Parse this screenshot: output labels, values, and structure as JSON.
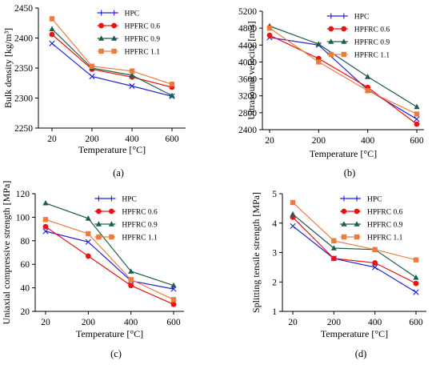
{
  "chart_data": [
    {
      "type": "line",
      "panel_label": "(a)",
      "xlabel": "Temperature [°C]",
      "ylabel": "Bulk density [kg/m³]",
      "categories": [
        "20",
        "200",
        "400",
        "600"
      ],
      "yticks": [
        2250,
        2300,
        2350,
        2400,
        2450
      ],
      "ylim": [
        2250,
        2450
      ],
      "grid": false,
      "legend": "top-right",
      "series": [
        {
          "name": "HPC",
          "values": [
            2391,
            2336,
            2320,
            2303
          ]
        },
        {
          "name": "HPFRC 0.6",
          "values": [
            2406,
            2348,
            2335,
            2318
          ]
        },
        {
          "name": "HPFRC 0.9",
          "values": [
            2415,
            2350,
            2338,
            2304
          ]
        },
        {
          "name": "HPFRC 1.1",
          "values": [
            2432,
            2353,
            2345,
            2323
          ]
        }
      ]
    },
    {
      "type": "line",
      "panel_label": "(b)",
      "xlabel": "Temperature [°C]",
      "ylabel": "Ultrasound velocity [m/s]",
      "categories": [
        "20",
        "200",
        "400",
        "600"
      ],
      "yticks": [
        2400,
        2800,
        3200,
        3600,
        4000,
        4400,
        4800,
        5200
      ],
      "ylim": [
        2400,
        5200
      ],
      "grid": false,
      "legend": "top-right",
      "series": [
        {
          "name": "HPC",
          "values": [
            4580,
            4400,
            3340,
            2650
          ]
        },
        {
          "name": "HPFRC 0.6",
          "values": [
            4630,
            4080,
            3400,
            2530
          ]
        },
        {
          "name": "HPFRC 0.9",
          "values": [
            4850,
            4420,
            3650,
            2940
          ]
        },
        {
          "name": "HPFRC 1.1",
          "values": [
            4800,
            4000,
            3320,
            2770
          ]
        }
      ]
    },
    {
      "type": "line",
      "panel_label": "(c)",
      "xlabel": "Temperature [°C]",
      "ylabel": "Uniaxial compressive strength [MPa]",
      "categories": [
        "20",
        "200",
        "400",
        "600"
      ],
      "yticks": [
        20,
        40,
        60,
        80,
        100,
        120
      ],
      "ylim": [
        20,
        120
      ],
      "grid": false,
      "legend": "top-right",
      "series": [
        {
          "name": "HPC",
          "values": [
            88,
            79,
            46,
            39
          ]
        },
        {
          "name": "HPFRC 0.6",
          "values": [
            92,
            67,
            42,
            26
          ]
        },
        {
          "name": "HPFRC 0.9",
          "values": [
            112,
            99,
            54,
            42
          ]
        },
        {
          "name": "HPFRC 1.1",
          "values": [
            98,
            86,
            47,
            30
          ]
        }
      ]
    },
    {
      "type": "line",
      "panel_label": "(d)",
      "xlabel": "Temperature [°C]",
      "ylabel": "Splitting tensile strength [MPa]",
      "categories": [
        "20",
        "200",
        "400",
        "600"
      ],
      "yticks": [
        1,
        2,
        3,
        4,
        5
      ],
      "ylim": [
        1,
        5
      ],
      "grid": false,
      "legend": "top-right",
      "series": [
        {
          "name": "HPC",
          "values": [
            3.9,
            2.8,
            2.5,
            1.65
          ]
        },
        {
          "name": "HPFRC 0.6",
          "values": [
            4.2,
            2.8,
            2.65,
            1.95
          ]
        },
        {
          "name": "HPFRC 0.9",
          "values": [
            4.3,
            3.15,
            3.1,
            2.15
          ]
        },
        {
          "name": "HPFRC 1.1",
          "values": [
            4.7,
            3.4,
            3.1,
            2.75
          ]
        }
      ]
    }
  ],
  "series_styles": [
    {
      "color": "#1f1fe0",
      "marker": "cross"
    },
    {
      "color": "#ee1111",
      "marker": "circle"
    },
    {
      "color": "#1b5e4a",
      "marker": "triangle"
    },
    {
      "color": "#ee7b3c",
      "marker": "square"
    }
  ]
}
